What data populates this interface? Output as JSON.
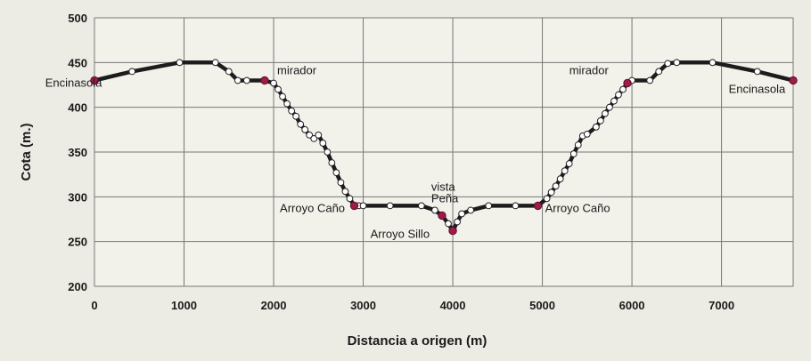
{
  "chart_data": {
    "type": "line",
    "title": "",
    "xlabel": "Distancia a origen (m)",
    "ylabel": "Cota (m.)",
    "xlim": [
      0,
      7800
    ],
    "ylim": [
      200,
      500
    ],
    "xticks": [
      0,
      1000,
      2000,
      3000,
      4000,
      5000,
      6000,
      7000
    ],
    "yticks": [
      200,
      250,
      300,
      350,
      400,
      450,
      500
    ],
    "grid": true,
    "colors": {
      "line": "#1c1c1c",
      "point": "#ffffff",
      "highlight": "#a01a4a",
      "grid": "#777777"
    },
    "series": [
      {
        "x": [
          0,
          420,
          950,
          1350,
          1500,
          1600,
          1700,
          1900,
          2000,
          2050,
          2100,
          2150,
          2200,
          2250,
          2300,
          2350,
          2400,
          2450,
          2500,
          2550,
          2600,
          2650,
          2700,
          2750,
          2800,
          2850,
          2900,
          2950,
          3000,
          3300,
          3650,
          3800,
          3880,
          3950,
          4000,
          4050,
          4100,
          4200,
          4400,
          4700,
          4950,
          5050,
          5100,
          5150,
          5200,
          5250,
          5300,
          5350,
          5400,
          5450,
          5500,
          5600,
          5650,
          5700,
          5750,
          5800,
          5850,
          5900,
          5950,
          6000,
          6200,
          6300,
          6400,
          6500,
          6900,
          7400,
          7800
        ],
        "y": [
          430,
          440,
          450,
          450,
          440,
          430,
          430,
          430,
          427,
          420,
          412,
          404,
          396,
          390,
          381,
          375,
          369,
          365,
          369,
          360,
          350,
          338,
          327,
          316,
          306,
          298,
          290,
          290,
          290,
          290,
          290,
          285,
          279,
          270,
          262,
          272,
          281,
          285,
          290,
          290,
          290,
          298,
          305,
          312,
          320,
          329,
          337,
          348,
          358,
          368,
          370,
          378,
          385,
          393,
          400,
          407,
          414,
          420,
          427,
          430,
          430,
          440,
          449,
          450,
          450,
          440,
          430
        ]
      }
    ],
    "highlighted_points": [
      {
        "x": 0,
        "y": 430
      },
      {
        "x": 1900,
        "y": 430
      },
      {
        "x": 2900,
        "y": 290
      },
      {
        "x": 3880,
        "y": 279
      },
      {
        "x": 4000,
        "y": 262
      },
      {
        "x": 4950,
        "y": 290
      },
      {
        "x": 5950,
        "y": 427
      },
      {
        "x": 7800,
        "y": 430
      }
    ],
    "annotations": [
      {
        "text": "Encinasola",
        "x": -550,
        "y": 423
      },
      {
        "text": "mirador",
        "x": 2040,
        "y": 437
      },
      {
        "text": "Arroyo Caño",
        "x": 2070,
        "y": 283
      },
      {
        "text": "vista",
        "x": 3760,
        "y": 307
      },
      {
        "text": "Peña",
        "x": 3760,
        "y": 294
      },
      {
        "text": "Arroyo Sillo",
        "x": 3080,
        "y": 254
      },
      {
        "text": "Arroyo Caño",
        "x": 5030,
        "y": 283
      },
      {
        "text": "mirador",
        "x": 5300,
        "y": 437
      },
      {
        "text": "Encinasola",
        "x": 7080,
        "y": 416
      }
    ]
  }
}
